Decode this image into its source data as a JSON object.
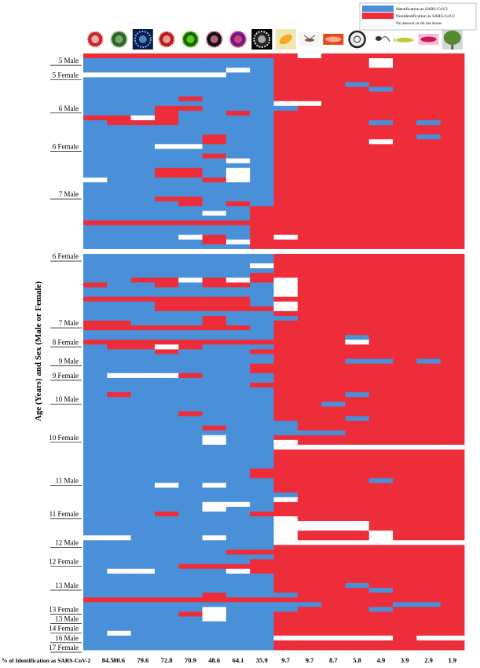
{
  "chart_data": {
    "type": "heatmap",
    "title": "",
    "ylabel": "Age (Years) and Sex (Male or Female)",
    "xlabel": "",
    "legend": {
      "placement": "top-right",
      "entries": [
        {
          "label": "Identification as SARS-CoV2",
          "color": "#4a90d9"
        },
        {
          "label": "Nonidentification as SARS-CoV2",
          "color": "#ee2d3a"
        },
        {
          "label": "No answer or do not know",
          "color": "#ffffff"
        }
      ]
    },
    "columns": [
      {
        "image": "virus-red-spiky-icon",
        "percent": "84.5"
      },
      {
        "image": "virus-green-cell-icon",
        "percent": "80.6"
      },
      {
        "image": "virus-blue-glow-icon",
        "percent": "79.6"
      },
      {
        "image": "virus-red-spheres-icon",
        "percent": "72.8"
      },
      {
        "image": "virus-green-cartoon-icon",
        "percent": "70.9"
      },
      {
        "image": "virus-cluster-dark-icon",
        "percent": "48.6"
      },
      {
        "image": "virus-purple-particle-icon",
        "percent": "64.1"
      },
      {
        "image": "virus-white-spiky-icon",
        "percent": "35.9"
      },
      {
        "image": "bacterium-yellow-icon",
        "percent": "9.7"
      },
      {
        "image": "mosquito-icon",
        "percent": "9.7"
      },
      {
        "image": "worm-orange-icon",
        "percent": "8.7"
      },
      {
        "image": "cell-dark-ring-icon",
        "percent": "5.8"
      },
      {
        "image": "sperm-icon",
        "percent": "4.9"
      },
      {
        "image": "fish-icon",
        "percent": "3.9"
      },
      {
        "image": "bacterium-pink-icon",
        "percent": "2.9"
      },
      {
        "image": "tree-icon",
        "percent": "1.9"
      }
    ],
    "pct_row_label": "% of Identification as SARS-CoV-2",
    "row_labels": [
      {
        "label": "5 Male",
        "row": 1
      },
      {
        "label": "5 Female",
        "row": 4
      },
      {
        "label": "6 Male",
        "row": 11
      },
      {
        "label": "6 Female",
        "row": 19
      },
      {
        "label": "7 Male",
        "row": 29
      },
      {
        "label": "6 Female",
        "row": 42
      },
      {
        "label": "7 Male",
        "row": 56
      },
      {
        "label": "8 Female",
        "row": 60
      },
      {
        "label": "9 Male",
        "row": 64
      },
      {
        "label": "9 Female",
        "row": 67
      },
      {
        "label": "10 Male",
        "row": 72
      },
      {
        "label": "10 Female",
        "row": 80
      },
      {
        "label": "11 Male",
        "row": 89
      },
      {
        "label": "11 Female",
        "row": 96
      },
      {
        "label": "12 Male",
        "row": 102
      },
      {
        "label": "12 Female",
        "row": 106
      },
      {
        "label": "13 Male",
        "row": 111
      },
      {
        "label": "13 Female",
        "row": 116
      },
      {
        "label": "13 Male",
        "row": 118
      },
      {
        "label": "14 Female",
        "row": 120
      },
      {
        "label": "16 Male",
        "row": 122
      },
      {
        "label": "17 Female",
        "row": 124
      }
    ],
    "cell_codes": {
      "B": "identification",
      "R": "nonidentification",
      "W": "no answer"
    },
    "cells": [
      "RRRRRRRRRWRRRRRR",
      "BBBBBBBBRRRRWRRR",
      "BBBBBBBBRRRRWRRR",
      "BBBBBBWBRRRRRRRR",
      "WWWWWWBBRRRRRRRR",
      "BBBBBBBBRRRRRRRR",
      "BBBBBBBBRRRBRRRR",
      "BBBBBBBBRRRRBRRR",
      "BBBBBBBBRRRRRRRR",
      "BBBBRBBBRRRRRRRR",
      "BBBBBBBBWWRRRRRR",
      "BBBRRBBBBRRRRRRR",
      "BBBRBBRBRRRRRRRR",
      "RRWRBBBBRRRRRRRR",
      "BRRRBBBBRRRRBRBR",
      "BBBBBBBBRRRRRRRR",
      "BBBBBBBBRRRRRRRR",
      "BBBBBRBBRRRRRRBR",
      "BBBBBRBBRRRRWRRR",
      "BBBWWBBBRRRRRRRR",
      "BBBBBBBBRRRRRRRR",
      "BBBBBRBBRRRRRRRR",
      "BBBBBBWBRRRRRRRR",
      "BBBBBBBBRRRRRRRR",
      "BBBRRBWBRRRRRRRR",
      "BBBRRBWBRRRRRRRR",
      "WBBBBRWBRRRRRRRR",
      "BBBBBBBBRRRRRRRR",
      "BBBBBBBBRRRRRRRR",
      "BBBBBBBBRRRRRRRR",
      "BBBRRBBBRRRRRRRR",
      "BBBBRBRBRRRRRRRR",
      "BBBBBBBRRRRRRRRR",
      "BBBBBWBRRRRRRRRR",
      "BBBBBBBRRRRRRRRR",
      "RRRRRRRRRRRRRRRR",
      "BBBBBBBRRRRRRRRR",
      "BBBBBBBRRRRRRRRR",
      "BBBBWRBRWRRRRRRR",
      "BBBBBRWRRRRRRRRR",
      "BBBBBBBRRRRRRRRR",
      "WWWWWWWWWWWWWWWW",
      "BBBBBBBBRRRRRRRR",
      "BBBBBBBBRRRRRRRR",
      "BBBBBBBWRRRRRRRR",
      "BBBBBBBBRRRRRRRR",
      "BBBBBBBRRRRRRRRR",
      "BBRRWRWRWRRRRRRR",
      "RBBRBRRBWRRRRRRR",
      "BBBBBBBBWRRRRRRR",
      "BBBBBBBBWRRRRRRR",
      "RRRRRRRBRRRRRRRR",
      "BBBRRRRBWRRRRRRR",
      "BBBRRRRRWRRRRRRR",
      "BBBBBBBBRRRRRRRR",
      "BBBBBRBBBRRRRRRR",
      "RRBBBRBBRRRRRRRR",
      "RRRRRRRBRRRRRRRR",
      "BBBBBBBBRRRRRRRR",
      "BBBBBBBBRRRBRRRR",
      "RRRRRRRRRRRWRRRR",
      "BRRWRBBBRRRRRRRR",
      "BBBRBBBRRRRRRRRR",
      "BBBBBBBBRRRRRRRR",
      "BBBBBBBBRRRBBRBR",
      "BBBBBBBRRRRRRRRR",
      "BBBBBBBRRRRRRRRR",
      "BWWWRBBBRRRRRRRR",
      "BBBBBBBBRRRRRRRR",
      "BBBBBBBRRRRRRRRR",
      "BBBBBBBBRRRRRRRR",
      "BRBBBBBBRRRBRRRR",
      "BBBBBBBBRRRRRRRR",
      "BBBBBBBBRRBRRRRR",
      "BBBBBBBBRRRRRRRR",
      "BBBBRBBBRRRRRRRR",
      "BBBBBBBBRRRBRRRR",
      "BBBBBBBBBRRRRRRR",
      "BBBBBRBBBRRRRRRR",
      "BBBBBBBBBBBRRRRR",
      "BBBBBWBBRRRRRRRR",
      "BBBBBWBBWRRRRRRR",
      "BBBBBBBBWWWWWWWW",
      "BBBBBBBBRRRRRRRR",
      "BBBBBBBBRRRRRRRR",
      "BBBBBBBBRRRRRRRR",
      "BBBBBBBBRRRRRRRR",
      "BBBBBBBRRRRRRRRR",
      "BBBBBBBRRRRRRRRR",
      "BBBBBBBBRRRRBRRR",
      "BBBWBWBBRRRRRRRR",
      "BBBBBBBBRRRRRRRR",
      "BBBBBBBBBRRRRRRR",
      "BBBBBBBBWRRRRRRR",
      "BBBBBWWBRRRRRRRR",
      "BBBBBWBBRRRRRRRR",
      "BBBRBBBRRRRRRRRR",
      "BBBBBBBBWRRRRRRR",
      "BBBBBBBBWWWWRRRR",
      "BBBBBBBBWWWWRRRR",
      "BBBBBBBBWRRRWRRR",
      "WWBBBWBBWRRRWRRR",
      "BBBBBBBBWWWWWWWW",
      "BBBBBBBBRRRRRRRR",
      "BBBBBBRRRRRRRRRR",
      "BBBBBBBBRRRRRRRR",
      "BBBBBBBRRRRRRRRR",
      "BBBBRRRRRRRRRRRR",
      "BWWBBBWRRRRRRRRR",
      "BBBBBBBBRRRRRRRR",
      "BBBBBBBBRRRRRRRR",
      "BBBBBBBBRRRBRRRR",
      "BBBBBBBBRRRRBRRR",
      "BBBBBRBBBRRRRRRR",
      "RRRRRRRRRRRRRRRR",
      "BBBBBBBBBBRRRBBR",
      "BBBBBWBBBRRRBRRR",
      "BBBBRWBBRRRRRRRR",
      "BBBBBWBBRRRRRRRR",
      "BBBBBBBBRRRRRRRR",
      "BBBBBBBBRRRRRRRR",
      "BWBBBBBBRRRRRRRR",
      "BBBBBBBBWWWWWRWW",
      "BBBBBBBBRRRRRRRR",
      "BBBBBBBBRRRRRRRR"
    ]
  }
}
